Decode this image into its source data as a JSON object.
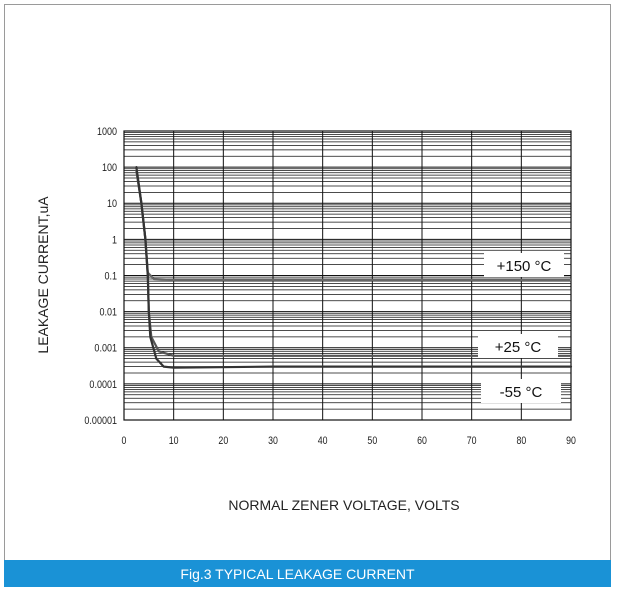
{
  "caption": "Fig.3 TYPICAL LEAKAGE  CURRENT",
  "chart_data": {
    "type": "line",
    "title": "",
    "xlabel": "NORMAL ZENER VOLTAGE, VOLTS",
    "ylabel": "LEAKAGE CURRENT,uA",
    "xlim": [
      0,
      90
    ],
    "ylim": [
      1e-05,
      1000
    ],
    "yscale": "log",
    "x_ticks": [
      "0",
      "10",
      "20",
      "30",
      "40",
      "50",
      "60",
      "70",
      "80",
      "90"
    ],
    "y_ticks": [
      "1000",
      "100",
      "10",
      "1",
      "0.1",
      "0.01",
      "0.001",
      "0.0001",
      "0.00001"
    ],
    "grid": true,
    "series": [
      {
        "name": "+150 °C",
        "color": "#666666",
        "points": [
          [
            2.5,
            80
          ],
          [
            3.5,
            10
          ],
          [
            4.3,
            1
          ],
          [
            4.8,
            0.12
          ],
          [
            6,
            0.08
          ],
          [
            10,
            0.075
          ],
          [
            30,
            0.075
          ],
          [
            60,
            0.075
          ],
          [
            90,
            0.075
          ]
        ]
      },
      {
        "name": "+25 °C",
        "color": "#555555",
        "points": [
          [
            2.5,
            80
          ],
          [
            3.5,
            10
          ],
          [
            4.3,
            1
          ],
          [
            4.8,
            0.1
          ],
          [
            5,
            0.01
          ],
          [
            5.5,
            0.002
          ],
          [
            7,
            0.0008
          ],
          [
            10,
            0.0006
          ],
          [
            30,
            0.0006
          ],
          [
            60,
            0.0006
          ],
          [
            90,
            0.0006
          ]
        ]
      },
      {
        "name": "-55 °C",
        "color": "#333333",
        "points": [
          [
            2.5,
            100
          ],
          [
            3.5,
            10
          ],
          [
            4.3,
            1
          ],
          [
            4.8,
            0.1
          ],
          [
            5,
            0.01
          ],
          [
            5.3,
            0.002
          ],
          [
            6.5,
            0.0005
          ],
          [
            8,
            0.0003
          ],
          [
            10,
            0.00028
          ],
          [
            30,
            0.0003
          ],
          [
            60,
            0.0003
          ],
          [
            90,
            0.0003
          ]
        ]
      }
    ]
  }
}
